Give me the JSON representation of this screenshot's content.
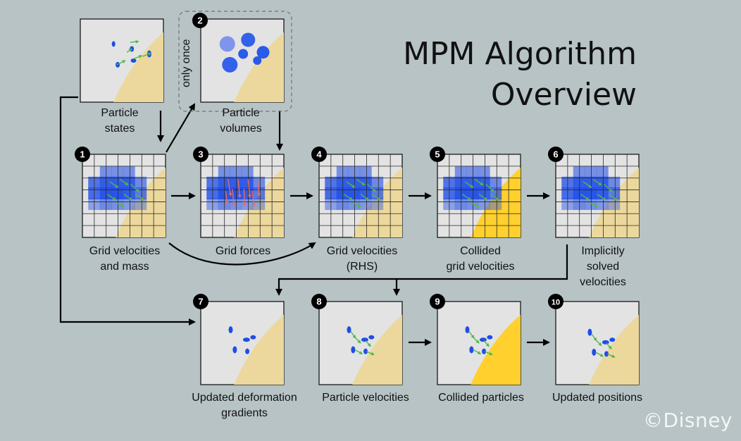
{
  "title": {
    "line1": "MPM Algorithm",
    "line2": "Overview"
  },
  "note": "only once",
  "watermark": "©Disney",
  "colors": {
    "background": "#b7c3c5",
    "panel": "#e3e3e3",
    "sand": "#ecd89c",
    "collided": "#ffd02e",
    "grid_mass": "#1f4de6",
    "particle": "#1f4de6",
    "velocity_arrow": "#4fb84a",
    "force_arrow": "#e46a6a",
    "volume_circle": "#6d86ef"
  },
  "captions": {
    "particle_states": [
      "Particle",
      "states"
    ],
    "particle_volumes": [
      "Particle",
      "volumes"
    ],
    "step1": [
      "Grid velocities",
      "and mass"
    ],
    "step3": [
      "Grid forces"
    ],
    "step4": [
      "Grid velocities",
      "(RHS)"
    ],
    "step5": [
      "Collided",
      "grid velocities"
    ],
    "step6": [
      "Implicitly",
      "solved",
      "velocities"
    ],
    "step7": [
      "Updated deformation",
      "gradients"
    ],
    "step8": [
      "Particle velocities"
    ],
    "step9": [
      "Collided particles"
    ],
    "step10": [
      "Updated positions"
    ]
  },
  "badges": [
    "1",
    "2",
    "3",
    "4",
    "5",
    "6",
    "7",
    "8",
    "9",
    "10"
  ]
}
